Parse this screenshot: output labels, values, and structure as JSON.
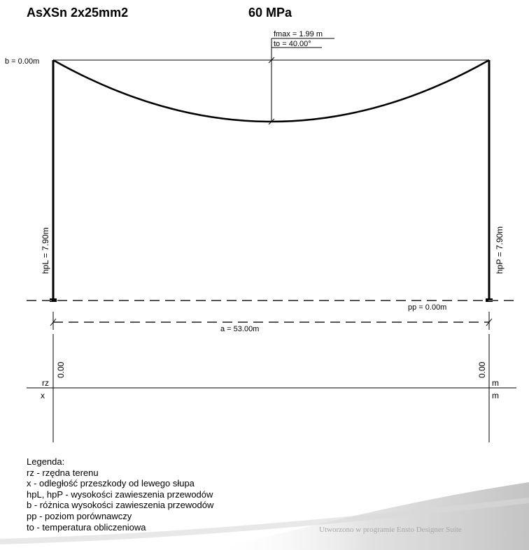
{
  "header": {
    "cable": "AsXSn 2x25mm2",
    "tension": "60 MPa"
  },
  "diagram": {
    "fmax": "fmax = 1.99 m",
    "to": "to = 40.00°",
    "b": "b = 0.00m",
    "hpL": "hpL = 7.90m",
    "hpP": "hpP = 7.90m",
    "pp": "pp = 0.00m",
    "a": "a = 53.00m",
    "rz_label": "rz",
    "x_label": "x",
    "rz_left": "0.00",
    "rz_right": "0.00",
    "unit_rz": "m",
    "unit_x": "m"
  },
  "legend": {
    "title": "Legenda:",
    "items": [
      "rz - rzędna terenu",
      "x - odległość przeszkody od lewego słupa",
      "hpL, hpP - wysokości zawieszenia przewodów",
      "b - różnica wysokości zawieszenia przewodów",
      "pp - poziom porównawczy",
      "to - temperatura obliczeniowa"
    ]
  },
  "footer": {
    "text": "Utworzono w programie Ensto Designer Suite"
  },
  "colors": {
    "line": "#000000",
    "dash": "#555555",
    "swoosh": "#c8c8c8",
    "footer_text": "#a8a8a8"
  }
}
